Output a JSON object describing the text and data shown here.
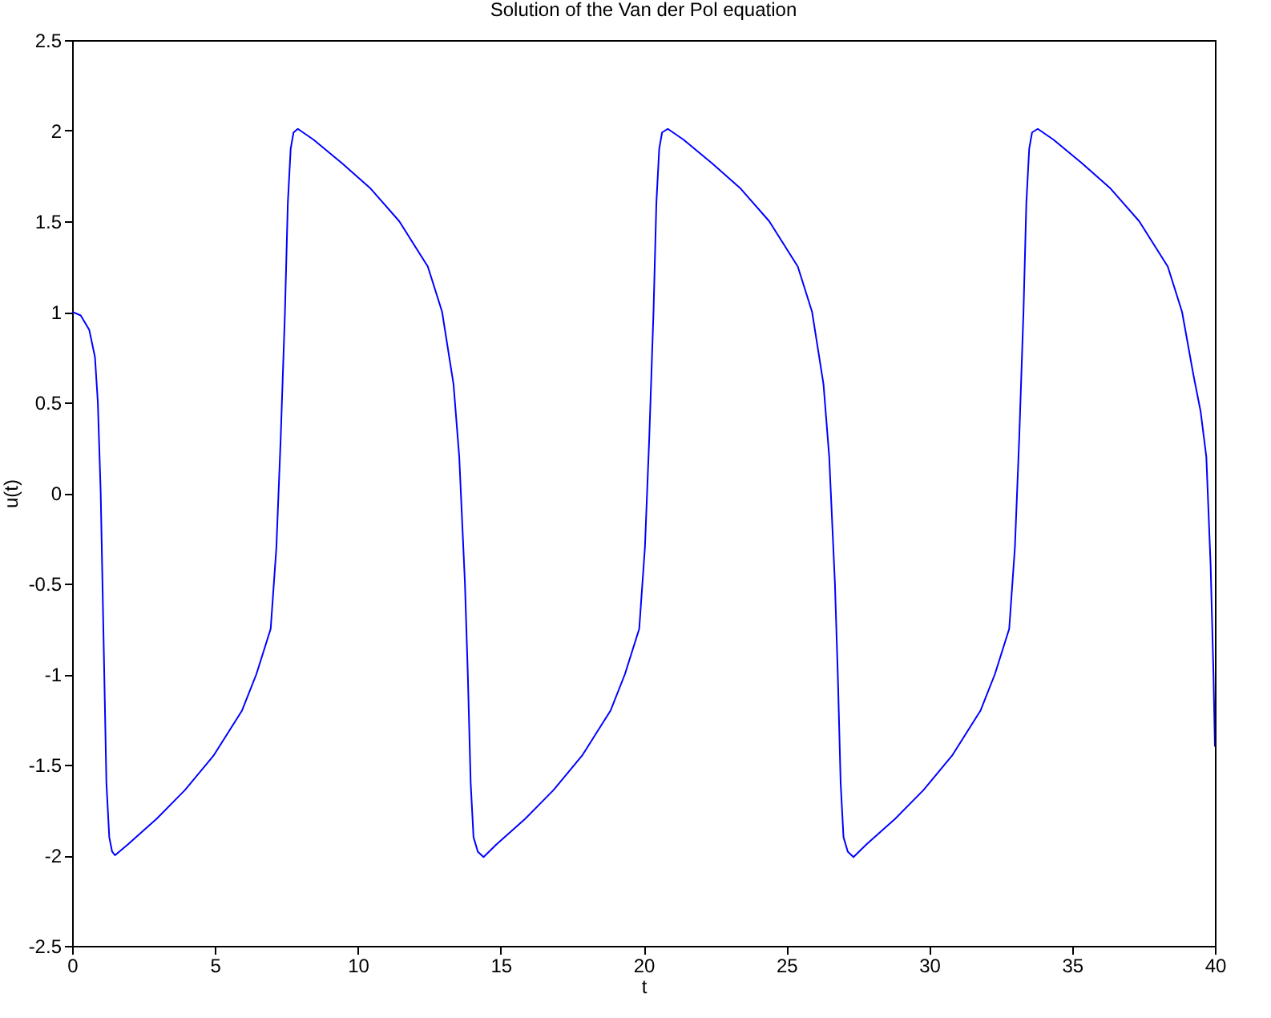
{
  "chart_data": {
    "type": "line",
    "title": "Solution of the Van der Pol equation",
    "xlabel": "t",
    "ylabel": "u(t)",
    "xlim": [
      0,
      40
    ],
    "xticks": [
      0,
      5,
      10,
      15,
      20,
      25,
      30,
      35,
      40
    ],
    "ylim": [
      -2.5,
      2.5
    ],
    "yticks": [
      -2.5,
      -2,
      -1.5,
      -1,
      -0.5,
      0,
      0.5,
      1,
      1.5,
      2,
      2.5
    ],
    "grid": false,
    "marker": "none",
    "line_style": "solid",
    "series": [
      {
        "color": "#0000ff",
        "x": [
          0,
          0.3,
          0.6,
          0.8,
          0.9,
          1.0,
          1.1,
          1.2,
          1.3,
          1.4,
          1.5,
          1.95,
          2.95,
          3.95,
          4.95,
          5.95,
          6.45,
          6.95,
          7.15,
          7.3,
          7.45,
          7.55,
          7.65,
          7.75,
          7.9,
          8.45,
          9.45,
          10.45,
          11.45,
          12.45,
          12.95,
          13.35,
          13.55,
          13.75,
          13.85,
          13.95,
          14.05,
          14.2,
          14.4,
          14.85,
          15.85,
          16.85,
          17.85,
          18.85,
          19.35,
          19.85,
          20.05,
          20.2,
          20.35,
          20.45,
          20.55,
          20.65,
          20.85,
          21.4,
          22.4,
          23.4,
          24.4,
          25.4,
          25.9,
          26.3,
          26.5,
          26.7,
          26.8,
          26.9,
          27.0,
          27.15,
          27.35,
          27.8,
          28.8,
          29.8,
          30.8,
          31.8,
          32.3,
          32.8,
          33.0,
          33.15,
          33.3,
          33.4,
          33.5,
          33.6,
          33.8,
          34.35,
          35.35,
          36.35,
          37.35,
          38.35,
          38.85,
          39.25,
          39.5,
          39.7,
          39.85,
          39.95,
          40
        ],
        "values": [
          1,
          0.98,
          0.9,
          0.75,
          0.5,
          0.0,
          -0.8,
          -1.6,
          -1.9,
          -1.98,
          -2.0,
          -1.94,
          -1.8,
          -1.64,
          -1.45,
          -1.2,
          -1.0,
          -0.75,
          -0.3,
          0.3,
          1.0,
          1.6,
          1.9,
          1.99,
          2.01,
          1.95,
          1.82,
          1.68,
          1.5,
          1.25,
          1.0,
          0.6,
          0.2,
          -0.5,
          -1.0,
          -1.6,
          -1.9,
          -1.98,
          -2.01,
          -1.94,
          -1.8,
          -1.64,
          -1.45,
          -1.2,
          -1.0,
          -0.75,
          -0.3,
          0.3,
          1.0,
          1.6,
          1.9,
          1.99,
          2.01,
          1.95,
          1.82,
          1.68,
          1.5,
          1.25,
          1.0,
          0.6,
          0.2,
          -0.5,
          -1.0,
          -1.6,
          -1.9,
          -1.98,
          -2.01,
          -1.94,
          -1.8,
          -1.64,
          -1.45,
          -1.2,
          -1.0,
          -0.75,
          -0.3,
          0.3,
          1.0,
          1.6,
          1.9,
          1.99,
          2.01,
          1.95,
          1.82,
          1.68,
          1.5,
          1.25,
          1.0,
          0.65,
          0.45,
          0.2,
          -0.4,
          -1.0,
          -1.4
        ]
      }
    ]
  }
}
